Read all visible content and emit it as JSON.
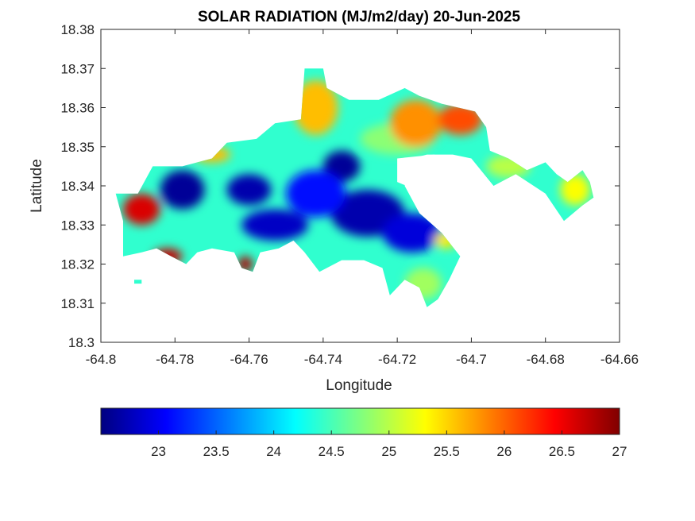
{
  "chart_data": {
    "type": "heatmap",
    "title": "SOLAR RADIATION (MJ/m2/day) 20-Jun-2025",
    "xlabel": "Longitude",
    "ylabel": "Latitude",
    "xlim": [
      -64.8,
      -64.66
    ],
    "ylim": [
      18.3,
      18.38
    ],
    "x_ticks": [
      "-64.8",
      "-64.78",
      "-64.76",
      "-64.74",
      "-64.72",
      "-64.7",
      "-64.68",
      "-64.66"
    ],
    "y_ticks": [
      "18.3",
      "18.31",
      "18.32",
      "18.33",
      "18.34",
      "18.35",
      "18.36",
      "18.37",
      "18.38"
    ],
    "grid": false,
    "colormap": "jet",
    "colorbar": {
      "orientation": "horizontal",
      "location": "bottom",
      "range": [
        22.5,
        27
      ],
      "ticks": [
        "23",
        "23.5",
        "24",
        "24.5",
        "25",
        "25.5",
        "26",
        "26.5",
        "27"
      ]
    },
    "land_outline": [
      [
        -64.79,
        18.338
      ],
      [
        -64.786,
        18.345
      ],
      [
        -64.778,
        18.345
      ],
      [
        -64.77,
        18.347
      ],
      [
        -64.766,
        18.351
      ],
      [
        -64.758,
        18.352
      ],
      [
        -64.753,
        18.356
      ],
      [
        -64.746,
        18.357
      ],
      [
        -64.745,
        18.37
      ],
      [
        -64.74,
        18.37
      ],
      [
        -64.739,
        18.365
      ],
      [
        -64.733,
        18.362
      ],
      [
        -64.725,
        18.362
      ],
      [
        -64.718,
        18.365
      ],
      [
        -64.714,
        18.363
      ],
      [
        -64.708,
        18.361
      ],
      [
        -64.699,
        18.359
      ],
      [
        -64.696,
        18.355
      ],
      [
        -64.695,
        18.349
      ],
      [
        -64.69,
        18.347
      ],
      [
        -64.685,
        18.344
      ],
      [
        -64.68,
        18.346
      ],
      [
        -64.677,
        18.343
      ],
      [
        -64.674,
        18.341
      ],
      [
        -64.67,
        18.344
      ],
      [
        -64.668,
        18.341
      ],
      [
        -64.667,
        18.337
      ],
      [
        -64.67,
        18.335
      ],
      [
        -64.675,
        18.331
      ],
      [
        -64.68,
        18.338
      ],
      [
        -64.688,
        18.343
      ],
      [
        -64.694,
        18.34
      ],
      [
        -64.7,
        18.347
      ],
      [
        -64.705,
        18.348
      ],
      [
        -64.712,
        18.348
      ],
      [
        -64.716,
        18.347
      ],
      [
        -64.718,
        18.34
      ],
      [
        -64.714,
        18.333
      ],
      [
        -64.708,
        18.328
      ],
      [
        -64.703,
        18.322
      ],
      [
        -64.706,
        18.316
      ],
      [
        -64.709,
        18.311
      ],
      [
        -64.712,
        18.309
      ],
      [
        -64.714,
        18.314
      ],
      [
        -64.718,
        18.316
      ],
      [
        -64.722,
        18.312
      ],
      [
        -64.724,
        18.319
      ],
      [
        -64.729,
        18.321
      ],
      [
        -64.735,
        18.321
      ],
      [
        -64.741,
        18.318
      ],
      [
        -64.745,
        18.323
      ],
      [
        -64.748,
        18.326
      ],
      [
        -64.752,
        18.324
      ],
      [
        -64.757,
        18.323
      ],
      [
        -64.759,
        18.318
      ],
      [
        -64.762,
        18.319
      ],
      [
        -64.764,
        18.323
      ],
      [
        -64.77,
        18.324
      ],
      [
        -64.774,
        18.323
      ],
      [
        -64.777,
        18.32
      ],
      [
        -64.781,
        18.322
      ],
      [
        -64.785,
        18.324
      ],
      [
        -64.789,
        18.323
      ],
      [
        -64.794,
        18.322
      ],
      [
        -64.794,
        18.331
      ],
      [
        -64.796,
        18.338
      ]
    ],
    "cutouts": [
      [
        [
          -64.72,
          18.347
        ],
        [
          -64.71,
          18.348
        ],
        [
          -64.704,
          18.344
        ],
        [
          -64.708,
          18.34
        ],
        [
          -64.715,
          18.339
        ],
        [
          -64.72,
          18.341
        ]
      ]
    ],
    "islets": [
      [
        [
          -64.791,
          18.316
        ],
        [
          -64.789,
          18.316
        ],
        [
          -64.789,
          18.315
        ],
        [
          -64.791,
          18.315
        ]
      ]
    ],
    "background_value": 24.4,
    "features": [
      {
        "lon": -64.778,
        "lat": 18.339,
        "value": 22.6,
        "rx": 0.006,
        "ry": 0.005
      },
      {
        "lon": -64.76,
        "lat": 18.339,
        "value": 22.7,
        "rx": 0.006,
        "ry": 0.004
      },
      {
        "lon": -64.753,
        "lat": 18.33,
        "value": 22.8,
        "rx": 0.009,
        "ry": 0.004
      },
      {
        "lon": -64.735,
        "lat": 18.345,
        "value": 22.6,
        "rx": 0.005,
        "ry": 0.004
      },
      {
        "lon": -64.728,
        "lat": 18.333,
        "value": 22.7,
        "rx": 0.01,
        "ry": 0.006
      },
      {
        "lon": -64.716,
        "lat": 18.328,
        "value": 22.9,
        "rx": 0.008,
        "ry": 0.005
      },
      {
        "lon": -64.742,
        "lat": 18.338,
        "value": 23.1,
        "rx": 0.008,
        "ry": 0.006
      },
      {
        "lon": -64.72,
        "lat": 18.352,
        "value": 24.8,
        "rx": 0.01,
        "ry": 0.004
      },
      {
        "lon": -64.707,
        "lat": 18.326,
        "value": 25.4,
        "rx": 0.003,
        "ry": 0.002
      },
      {
        "lon": -64.742,
        "lat": 18.36,
        "value": 25.6,
        "rx": 0.006,
        "ry": 0.007
      },
      {
        "lon": -64.715,
        "lat": 18.356,
        "value": 25.8,
        "rx": 0.007,
        "ry": 0.006
      },
      {
        "lon": -64.703,
        "lat": 18.357,
        "value": 26.1,
        "rx": 0.006,
        "ry": 0.004
      },
      {
        "lon": -64.789,
        "lat": 18.334,
        "value": 26.6,
        "rx": 0.005,
        "ry": 0.004
      },
      {
        "lon": -64.782,
        "lat": 18.322,
        "value": 26.7,
        "rx": 0.004,
        "ry": 0.002
      },
      {
        "lon": -64.761,
        "lat": 18.32,
        "value": 26.8,
        "rx": 0.002,
        "ry": 0.002
      },
      {
        "lon": -64.672,
        "lat": 18.339,
        "value": 25.3,
        "rx": 0.004,
        "ry": 0.004
      },
      {
        "lon": -64.69,
        "lat": 18.345,
        "value": 25.0,
        "rx": 0.006,
        "ry": 0.003
      },
      {
        "lon": -64.713,
        "lat": 18.315,
        "value": 24.9,
        "rx": 0.005,
        "ry": 0.004
      },
      {
        "lon": -64.77,
        "lat": 18.348,
        "value": 25.6,
        "rx": 0.005,
        "ry": 0.002
      }
    ]
  }
}
